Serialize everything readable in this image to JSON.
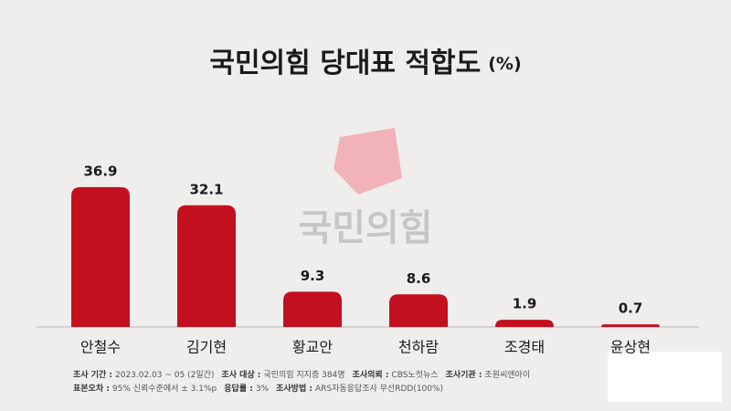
{
  "chart_data": {
    "type": "bar",
    "title": "국민의힘 당대표 적합도",
    "unit": "(%)",
    "watermark": "국민의힘",
    "categories": [
      "안철수",
      "김기현",
      "황교안",
      "천하람",
      "조경태",
      "윤상현"
    ],
    "values": [
      36.9,
      32.1,
      9.3,
      8.6,
      1.9,
      0.7
    ],
    "color": "#c3101f",
    "notes": [
      [
        {
          "label": "조사 기간 :",
          "text": "2023.02.03 ~ 05 (2일간)"
        },
        {
          "label": "조사 대상 :",
          "text": "국민의힘 지지층 384명"
        },
        {
          "label": "조사의뢰 :",
          "text": "CBS노컷뉴스"
        },
        {
          "label": "조사기관 :",
          "text": "조원씨앤아이"
        }
      ],
      [
        {
          "label": "표본오차 :",
          "text": "95% 신뢰수준에서 ± 3.1%p"
        },
        {
          "label": "응답률 :",
          "text": "3%"
        },
        {
          "label": "조사방법 :",
          "text": "ARS자동응답조사 무선RDD(100%)"
        }
      ]
    ]
  }
}
